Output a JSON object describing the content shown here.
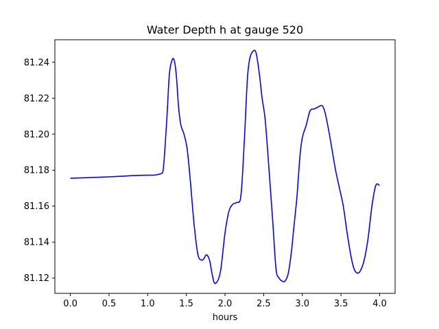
{
  "chart_data": {
    "type": "line",
    "title": "Water Depth h at gauge 520",
    "xlabel": "hours",
    "ylabel": "",
    "xlim": [
      -0.2,
      4.2
    ],
    "ylim": [
      81.1115,
      81.2525
    ],
    "xticks": [
      "0.0",
      "0.5",
      "1.0",
      "1.5",
      "2.0",
      "2.5",
      "3.0",
      "3.5",
      "4.0"
    ],
    "yticks": [
      "81.12",
      "81.14",
      "81.16",
      "81.18",
      "81.20",
      "81.22",
      "81.24"
    ],
    "grid": false,
    "series": [
      {
        "color": "#0000ff",
        "x": [
          0.0,
          0.2,
          0.4,
          0.6,
          0.7,
          0.8,
          0.9,
          1.0,
          1.1,
          1.15,
          1.18,
          1.2,
          1.22,
          1.25,
          1.28,
          1.31,
          1.34,
          1.37,
          1.4,
          1.43,
          1.47,
          1.51,
          1.55,
          1.6,
          1.65,
          1.7,
          1.73,
          1.76,
          1.8,
          1.83,
          1.86,
          1.89,
          1.92,
          1.95,
          2.0,
          2.05,
          2.1,
          2.15,
          2.2,
          2.23,
          2.26,
          2.29,
          2.32,
          2.36,
          2.4,
          2.44,
          2.48,
          2.52,
          2.57,
          2.62,
          2.66,
          2.7,
          2.74,
          2.78,
          2.82,
          2.86,
          2.89,
          2.93,
          2.97,
          3.0,
          3.05,
          3.1,
          3.15,
          3.2,
          3.25,
          3.28,
          3.31,
          3.35,
          3.39,
          3.43,
          3.48,
          3.53,
          3.58,
          3.63,
          3.67,
          3.71,
          3.75,
          3.8,
          3.85,
          3.9,
          3.95,
          4.0
        ],
        "y": [
          81.1755,
          81.1758,
          81.1761,
          81.1765,
          81.1767,
          81.177,
          81.1771,
          81.1772,
          81.1773,
          81.1778,
          81.1782,
          81.18,
          81.19,
          81.21,
          81.233,
          81.2405,
          81.2415,
          81.233,
          81.215,
          81.205,
          81.2,
          81.192,
          81.175,
          81.15,
          81.133,
          81.13,
          81.131,
          81.133,
          81.13,
          81.123,
          81.1175,
          81.1175,
          81.12,
          81.126,
          81.145,
          81.157,
          81.161,
          81.162,
          81.164,
          81.18,
          81.205,
          81.231,
          81.242,
          81.246,
          81.2455,
          81.235,
          81.22,
          81.208,
          81.18,
          81.15,
          81.125,
          81.12,
          81.1183,
          81.1185,
          81.123,
          81.135,
          81.148,
          81.165,
          81.188,
          81.198,
          81.205,
          81.213,
          81.214,
          81.215,
          81.216,
          81.214,
          81.209,
          81.2,
          81.19,
          81.18,
          81.17,
          81.16,
          81.145,
          81.132,
          81.125,
          81.1228,
          81.124,
          81.13,
          81.142,
          81.16,
          81.1715,
          81.1715
        ]
      }
    ]
  }
}
